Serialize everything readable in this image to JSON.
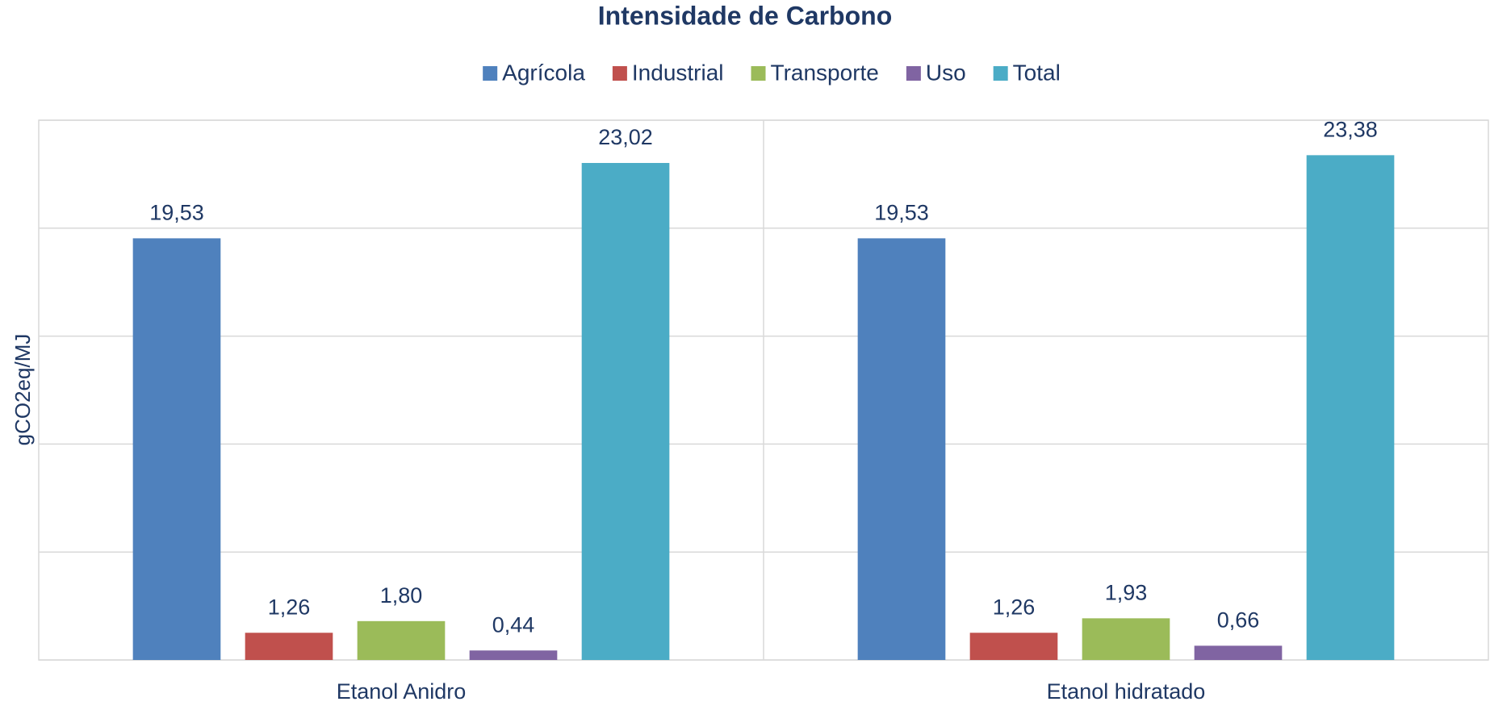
{
  "chart_data": {
    "type": "bar",
    "title": "Intensidade de Carbono",
    "y_label": "gCO2eq/MJ",
    "categories": [
      "Etanol Anidro",
      "Etanol hidratado"
    ],
    "series": [
      {
        "name": "Agrícola",
        "color": "#4f81bd",
        "values": [
          19.53,
          19.53
        ],
        "value_labels": [
          "19,53",
          "19,53"
        ]
      },
      {
        "name": "Industrial",
        "color": "#c0504d",
        "values": [
          1.26,
          1.26
        ],
        "value_labels": [
          "1,26",
          "1,26"
        ]
      },
      {
        "name": "Transporte",
        "color": "#9bbb59",
        "values": [
          1.8,
          1.93
        ],
        "value_labels": [
          "1,80",
          "1,93"
        ]
      },
      {
        "name": "Uso",
        "color": "#8064a2",
        "values": [
          0.44,
          0.66
        ],
        "value_labels": [
          "0,44",
          "0,66"
        ]
      },
      {
        "name": "Total",
        "color": "#4bacc6",
        "values": [
          23.02,
          23.38
        ],
        "value_labels": [
          "23,02",
          "23,38"
        ]
      }
    ],
    "ylim": [
      0,
      25
    ],
    "yticks": [
      0,
      5,
      10,
      15,
      20,
      25
    ],
    "grid": true,
    "legend": "top"
  }
}
